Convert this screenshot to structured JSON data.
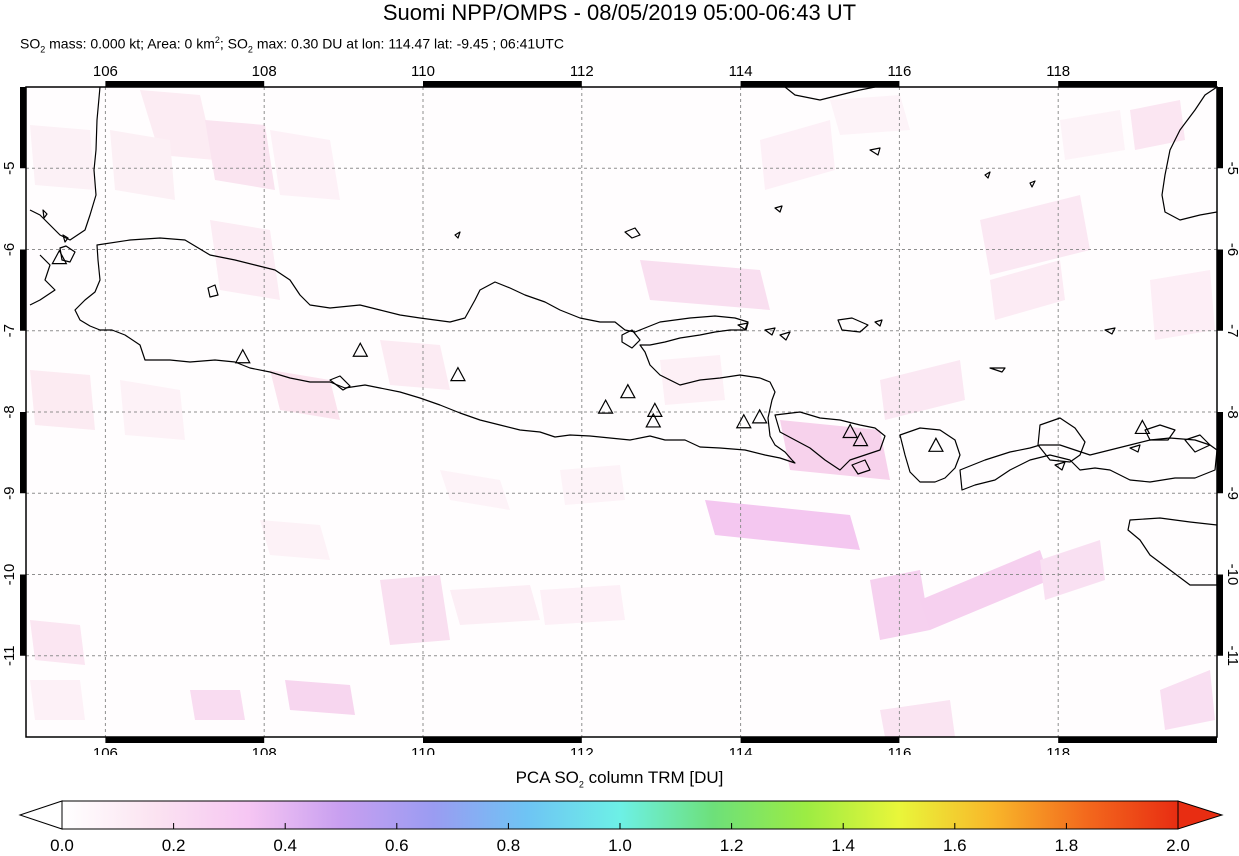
{
  "header": {
    "title": "Suomi NPP/OMPS - 08/05/2019 05:00-06:43 UT",
    "sub_a": "SO",
    "sub_a_idx": "2",
    "sub_b": " mass: 0.000 kt; Area: 0 km",
    "sub_b_sup": "2",
    "sub_c": "; SO",
    "sub_c_idx": "2",
    "sub_d": " max: 0.30 DU at lon: 114.47 lat: -9.45 ; 06:41UTC"
  },
  "map": {
    "lon_ticks": [
      "106",
      "108",
      "110",
      "112",
      "114",
      "116",
      "118"
    ],
    "lat_ticks": [
      "-5",
      "-6",
      "-7",
      "-8",
      "-9",
      "-10",
      "-11"
    ],
    "lon_values": [
      106,
      108,
      110,
      112,
      114,
      116,
      118
    ],
    "lat_values": [
      -5,
      -6,
      -7,
      -8,
      -9,
      -10,
      -11
    ],
    "lon_range": [
      105,
      120
    ],
    "lat_range": [
      -12,
      -4
    ],
    "volcanoes": [
      {
        "lon": 105.42,
        "lat": -6.1
      },
      {
        "lon": 107.73,
        "lat": -7.32
      },
      {
        "lon": 109.21,
        "lat": -7.24
      },
      {
        "lon": 110.44,
        "lat": -7.54
      },
      {
        "lon": 112.3,
        "lat": -7.94
      },
      {
        "lon": 112.58,
        "lat": -7.75
      },
      {
        "lon": 112.92,
        "lat": -7.98
      },
      {
        "lon": 112.9,
        "lat": -8.11
      },
      {
        "lon": 114.04,
        "lat": -8.12
      },
      {
        "lon": 114.24,
        "lat": -8.06
      },
      {
        "lon": 115.38,
        "lat": -8.24
      },
      {
        "lon": 115.51,
        "lat": -8.34
      },
      {
        "lon": 116.46,
        "lat": -8.41
      },
      {
        "lon": 119.06,
        "lat": -8.19
      }
    ],
    "so2_max_location": {
      "lon": 114.47,
      "lat": -9.45,
      "value": 0.3
    }
  },
  "colorbar": {
    "label_pre": "PCA SO",
    "label_idx": "2",
    "label_post": " column TRM [DU]",
    "ticks": [
      "0.0",
      "0.2",
      "0.4",
      "0.6",
      "0.8",
      "1.0",
      "1.2",
      "1.4",
      "1.6",
      "1.8",
      "2.0"
    ],
    "min": 0.0,
    "max": 2.0,
    "colors": [
      "#ffffff",
      "#fbe3f1",
      "#f6c6f3",
      "#c89ff0",
      "#9a9cf2",
      "#6ec4f4",
      "#6df0e6",
      "#6de07a",
      "#9cec43",
      "#e9f63a",
      "#f8b72a",
      "#f36a1d",
      "#e82d12"
    ]
  }
}
